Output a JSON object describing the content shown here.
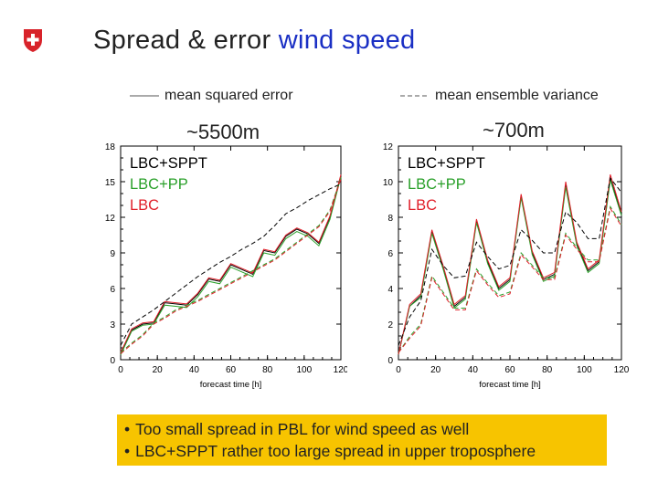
{
  "header": {
    "title_prefix": "Spread & error",
    "title_accent": "wind speed",
    "accent_color": "#1a2fc4"
  },
  "legend": {
    "solid_label": "mean squared error",
    "dashed_label": "mean ensemble variance"
  },
  "colors": {
    "LBC+SPPT": "#000000",
    "LBC+PP": "#2aa02a",
    "LBC": "#e0202a"
  },
  "chart_data": [
    {
      "type": "line",
      "title": "~5500m",
      "xlabel": "forecast time [h]",
      "ylabel": "",
      "x": [
        0,
        6,
        12,
        18,
        24,
        30,
        36,
        42,
        48,
        54,
        60,
        66,
        72,
        78,
        84,
        90,
        96,
        102,
        108,
        114,
        120
      ],
      "xlim": [
        0,
        120
      ],
      "ylim": [
        0,
        18
      ],
      "xticks": [
        "0",
        "20",
        "40",
        "60",
        "80",
        "100",
        "120"
      ],
      "yticks": [
        "0",
        "3",
        "6",
        "9",
        "12",
        "15",
        "18"
      ],
      "series_labels": [
        "LBC+SPPT",
        "LBC+PP",
        "LBC"
      ],
      "series": [
        {
          "name": "LBC+SPPT",
          "style": "solid",
          "values": [
            0.5,
            2.5,
            3.0,
            3.1,
            4.8,
            4.7,
            4.6,
            5.5,
            6.8,
            6.6,
            8.0,
            7.6,
            7.2,
            9.2,
            9.0,
            10.4,
            11.0,
            10.6,
            9.8,
            12.0,
            15.5
          ]
        },
        {
          "name": "LBC+PP",
          "style": "solid",
          "values": [
            0.4,
            2.4,
            2.9,
            3.0,
            4.6,
            4.5,
            4.4,
            5.3,
            6.6,
            6.4,
            7.8,
            7.4,
            7.0,
            9.0,
            8.8,
            10.2,
            10.8,
            10.4,
            9.6,
            11.8,
            15.4
          ]
        },
        {
          "name": "LBC",
          "style": "solid",
          "values": [
            0.6,
            2.6,
            3.1,
            3.2,
            4.9,
            4.8,
            4.7,
            5.6,
            6.9,
            6.7,
            8.1,
            7.7,
            7.3,
            9.3,
            9.1,
            10.5,
            11.1,
            10.7,
            9.9,
            12.1,
            15.6
          ]
        },
        {
          "name": "LBC+SPPT",
          "style": "dashed",
          "values": [
            1.2,
            3.0,
            3.6,
            4.2,
            4.9,
            5.6,
            6.3,
            7.0,
            7.6,
            8.2,
            8.7,
            9.3,
            9.8,
            10.4,
            11.3,
            12.3,
            12.8,
            13.4,
            13.9,
            14.4,
            14.8
          ]
        },
        {
          "name": "LBC+PP",
          "style": "dashed",
          "values": [
            0.6,
            1.4,
            2.1,
            3.1,
            3.6,
            4.2,
            4.6,
            5.0,
            5.5,
            6.0,
            6.5,
            7.0,
            7.5,
            8.0,
            8.5,
            9.2,
            9.9,
            10.6,
            11.3,
            12.6,
            15.3
          ]
        },
        {
          "name": "LBC",
          "style": "dashed",
          "values": [
            0.5,
            1.3,
            2.0,
            3.0,
            3.5,
            4.1,
            4.5,
            4.9,
            5.4,
            5.9,
            6.4,
            6.9,
            7.4,
            7.9,
            8.4,
            9.1,
            9.8,
            10.5,
            11.2,
            12.5,
            15.2
          ]
        }
      ]
    },
    {
      "type": "line",
      "title": "~700m",
      "xlabel": "forecast time [h]",
      "ylabel": "",
      "x": [
        0,
        6,
        12,
        18,
        24,
        30,
        36,
        42,
        48,
        54,
        60,
        66,
        72,
        78,
        84,
        90,
        96,
        102,
        108,
        114,
        120
      ],
      "xlim": [
        0,
        120
      ],
      "ylim": [
        0,
        12
      ],
      "xticks": [
        "0",
        "20",
        "40",
        "60",
        "80",
        "100",
        "120"
      ],
      "yticks": [
        "0",
        "2",
        "4",
        "6",
        "8",
        "10",
        "12"
      ],
      "series_labels": [
        "LBC+SPPT",
        "LBC+PP",
        "LBC"
      ],
      "series": [
        {
          "name": "LBC+SPPT",
          "style": "solid",
          "values": [
            0.3,
            3.0,
            3.6,
            7.2,
            5.2,
            3.0,
            3.5,
            7.8,
            5.5,
            4.0,
            4.5,
            9.2,
            6.0,
            4.5,
            4.8,
            9.8,
            6.5,
            5.0,
            5.5,
            10.2,
            8.2
          ]
        },
        {
          "name": "LBC+PP",
          "style": "solid",
          "values": [
            0.3,
            3.0,
            3.5,
            7.1,
            5.1,
            2.9,
            3.4,
            7.7,
            5.4,
            3.9,
            4.4,
            9.1,
            5.9,
            4.4,
            4.7,
            9.7,
            6.4,
            4.9,
            5.4,
            10.1,
            8.1
          ]
        },
        {
          "name": "LBC",
          "style": "solid",
          "values": [
            0.3,
            3.1,
            3.7,
            7.3,
            5.3,
            3.1,
            3.6,
            7.9,
            5.6,
            4.1,
            4.6,
            9.3,
            6.1,
            4.6,
            4.9,
            10.0,
            6.6,
            5.1,
            5.6,
            10.4,
            8.3
          ]
        },
        {
          "name": "LBC+SPPT",
          "style": "dashed",
          "values": [
            0.8,
            2.4,
            3.3,
            6.2,
            5.3,
            4.6,
            4.7,
            6.6,
            5.8,
            5.1,
            5.3,
            7.3,
            6.7,
            6.0,
            6.0,
            8.3,
            7.7,
            6.8,
            6.8,
            10.2,
            9.4
          ]
        },
        {
          "name": "LBC+PP",
          "style": "dashed",
          "values": [
            0.4,
            1.3,
            2.0,
            4.7,
            3.8,
            2.9,
            2.9,
            5.1,
            4.3,
            3.6,
            3.8,
            6.0,
            5.3,
            4.6,
            4.6,
            7.1,
            6.3,
            5.6,
            5.6,
            8.6,
            7.6
          ]
        },
        {
          "name": "LBC",
          "style": "dashed",
          "values": [
            0.4,
            1.2,
            1.9,
            4.6,
            3.7,
            2.8,
            2.8,
            5.0,
            4.2,
            3.5,
            3.7,
            5.9,
            5.2,
            4.5,
            4.5,
            7.0,
            6.2,
            5.5,
            5.5,
            8.5,
            7.5
          ]
        }
      ]
    }
  ],
  "notes": [
    "Too small spread in PBL for wind speed as well",
    "LBC+SPPT rather too large spread in upper troposphere"
  ]
}
